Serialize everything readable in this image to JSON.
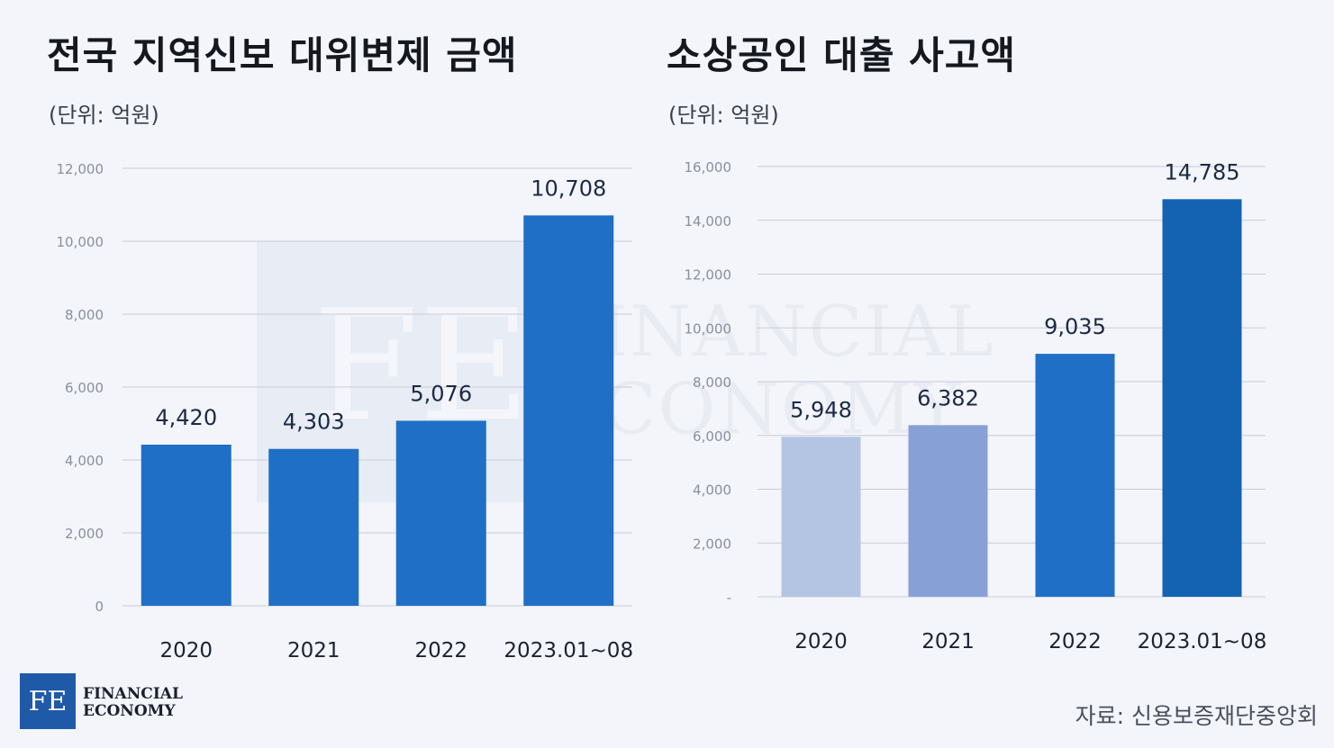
{
  "charts": [
    {
      "title": "전국 지역신보 대위변제 금액",
      "unit": "(단위: 억원)"
    },
    {
      "title": "소상공인 대출 사고액",
      "unit": "(단위: 억원)"
    }
  ],
  "chart_data": [
    {
      "type": "bar",
      "title": "전국 지역신보 대위변제 금액",
      "ylabel": "(단위: 억원)",
      "categories": [
        "2020",
        "2021",
        "2022",
        "2023.01~08"
      ],
      "values": [
        4420,
        4303,
        5076,
        10708
      ],
      "value_labels": [
        "4,420",
        "4,303",
        "5,076",
        "10,708"
      ],
      "ylim": [
        0,
        12000
      ],
      "yticks": [
        0,
        2000,
        4000,
        6000,
        8000,
        10000,
        12000
      ],
      "ytick_labels": [
        "0",
        "2,000",
        "4,000",
        "6,000",
        "8,000",
        "10,000",
        "12,000"
      ],
      "bar_colors": [
        "#1f6fc6",
        "#1f6fc6",
        "#1f6fc6",
        "#1f6fc6"
      ],
      "grid": true
    },
    {
      "type": "bar",
      "title": "소상공인 대출 사고액",
      "ylabel": "(단위: 억원)",
      "categories": [
        "2020",
        "2021",
        "2022",
        "2023.01~08"
      ],
      "values": [
        5948,
        6382,
        9035,
        14785
      ],
      "value_labels": [
        "5,948",
        "6,382",
        "9,035",
        "14,785"
      ],
      "ylim": [
        0,
        16000
      ],
      "yticks": [
        0,
        2000,
        4000,
        6000,
        8000,
        10000,
        12000,
        14000,
        16000
      ],
      "ytick_labels": [
        "-",
        "2,000",
        "4,000",
        "6,000",
        "8,000",
        "10,000",
        "12,000",
        "14,000",
        "16,000"
      ],
      "bar_colors": [
        "#b4c5e4",
        "#87a1d6",
        "#1f6fc6",
        "#1463b3"
      ],
      "grid": true
    }
  ],
  "watermark": {
    "monogram": "FE",
    "line1": "FINANCIAL",
    "line2": "ECONOMY"
  },
  "logo": {
    "monogram": "FE",
    "line1": "FINANCIAL",
    "line2": "ECONOMY"
  },
  "source": "자료: 신용보증재단중앙회",
  "colors": {
    "background": "#f3f5fa",
    "grid": "#c9ccd6",
    "axis_text": "#8a8f9c",
    "value_text": "#1c2a44",
    "logo_bg": "#1e5aa8"
  }
}
